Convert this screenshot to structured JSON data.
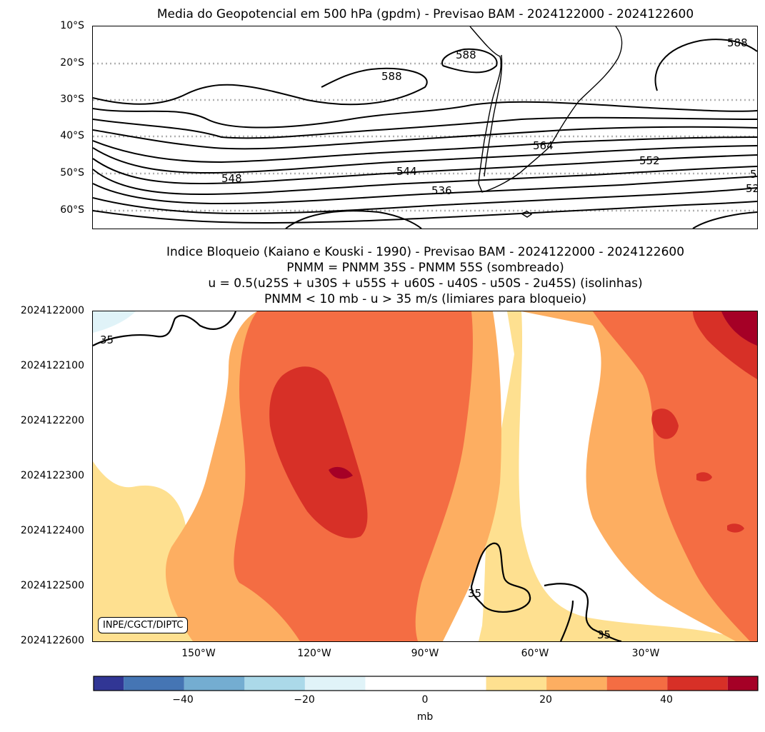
{
  "chart_data": [
    {
      "type": "contour-map",
      "title": "Media do Geopotencial em 500 hPa (gpdm) - Previsao BAM - 2024122000 - 2024122600",
      "ytick_labels": [
        "10°S",
        "20°S",
        "30°S",
        "40°S",
        "50°S",
        "60°S"
      ],
      "latitude_range": [
        -10,
        -65
      ],
      "contour_labels": [
        "588",
        "588",
        "588",
        "564",
        "552",
        "548",
        "544",
        "536",
        "52",
        "5"
      ],
      "grid": true
    },
    {
      "type": "filled-contour",
      "title_lines": [
        "Indice Bloqueio (Kaiano e Kouski - 1990) - Previsao BAM - 2024122000 - 2024122600",
        "PNMM = PNMM 35S - PNMM 55S (sombreado)",
        "u = 0.5(u25S + u30S + u55S + u60S - u40S - u50S - 2u45S) (isolinhas)",
        "PNMM < 10 mb - u > 35 m/s (limiares para bloqueio)"
      ],
      "ytick_labels": [
        "2024122000",
        "2024122100",
        "2024122200",
        "2024122300",
        "2024122400",
        "2024122500",
        "2024122600"
      ],
      "xtick_labels": [
        "150°W",
        "120°W",
        "90°W",
        "60°W",
        "30°W"
      ],
      "contour_labels": [
        "35",
        "35",
        "35"
      ],
      "credit": "INPE/CGCT/DIPTC",
      "colorbar": {
        "label": "mb",
        "range": [
          -55,
          55
        ],
        "levels": [
          -55,
          -50,
          -40,
          -30,
          -20,
          -10,
          10,
          20,
          30,
          40,
          50,
          55
        ],
        "colors": [
          "#313695",
          "#4575b4",
          "#74add1",
          "#abd9e9",
          "#e0f3f8",
          "#ffffff",
          "#fee090",
          "#fdae61",
          "#f46d43",
          "#d73027",
          "#a50026"
        ],
        "tick_labels": [
          "−40",
          "−20",
          "0",
          "20",
          "40"
        ]
      }
    }
  ]
}
